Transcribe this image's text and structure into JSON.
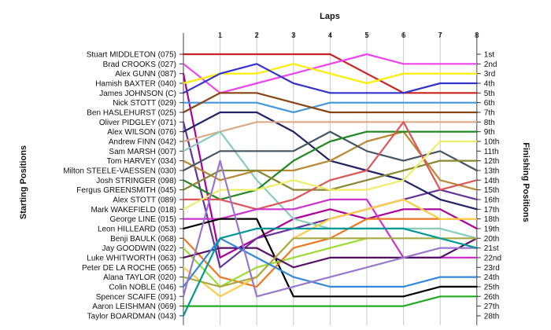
{
  "chart_data": {
    "type": "line",
    "title": "Laps",
    "left_axis_title": "Starting Positions",
    "right_axis_title": "Finishing Positions",
    "laps": [
      "1",
      "2",
      "3",
      "4",
      "5",
      "6",
      "7",
      "8"
    ],
    "finishing_labels": [
      "1st",
      "2nd",
      "3rd",
      "4th",
      "5th",
      "6th",
      "7th",
      "8th",
      "9th",
      "10th",
      "11th",
      "12th",
      "13th",
      "14th",
      "15th",
      "16th",
      "17th",
      "18th",
      "19th",
      "20th",
      "21st",
      "22nd",
      "23rd",
      "24th",
      "25th",
      "26th",
      "27th",
      "28th"
    ],
    "series": [
      {
        "name": "Stuart MIDDLETON (075)",
        "color": "#cc2222",
        "positions": [
          1,
          1,
          1,
          1,
          1,
          3,
          5,
          5,
          5
        ]
      },
      {
        "name": "Brad CROOKS (027)",
        "color": "#ee44ee",
        "positions": [
          2,
          5,
          4,
          3,
          2,
          1,
          2,
          2,
          2
        ]
      },
      {
        "name": "Alex GUNN (087)",
        "color": "#aa0099",
        "positions": [
          3,
          22,
          20,
          18,
          17,
          18,
          17,
          17,
          19
        ]
      },
      {
        "name": "Hamish BAXTER (040)",
        "color": "#ffee00",
        "positions": [
          4,
          3,
          3,
          2,
          3,
          4,
          3,
          3,
          3
        ]
      },
      {
        "name": "James JOHNSON (C)",
        "color": "#3333cc",
        "positions": [
          5,
          3,
          2,
          4,
          5,
          5,
          5,
          4,
          4
        ]
      },
      {
        "name": "Nick STOTT (029)",
        "color": "#4499dd",
        "positions": [
          6,
          6,
          6,
          7,
          6,
          6,
          6,
          6,
          6
        ]
      },
      {
        "name": "Ben HASLEHURST (025)",
        "color": "#884411",
        "positions": [
          7,
          5,
          5,
          6,
          7,
          7,
          7,
          7,
          7
        ]
      },
      {
        "name": "Oliver PIDGLEY (071)",
        "color": "#663399",
        "positions": [
          8,
          23,
          20,
          19,
          18,
          17,
          16,
          15,
          16
        ]
      },
      {
        "name": "Alex WILSON (076)",
        "color": "#222266",
        "positions": [
          9,
          7,
          7,
          9,
          12,
          13,
          14,
          16,
          17
        ]
      },
      {
        "name": "Andrew FINN (042)",
        "color": "#ddaa88",
        "positions": [
          10,
          9,
          8,
          8,
          8,
          8,
          8,
          8,
          8
        ]
      },
      {
        "name": "Sam MARSH (007)",
        "color": "#88ccbb",
        "positions": [
          11,
          9,
          14,
          18,
          19,
          19,
          19,
          19,
          20
        ]
      },
      {
        "name": "Tom HARVEY (034)",
        "color": "#bb8833",
        "positions": [
          12,
          14,
          13,
          13,
          12,
          10,
          9,
          14,
          15
        ]
      },
      {
        "name": "Milton STEELE-VAESSEN (030)",
        "color": "#445566",
        "positions": [
          13,
          11,
          11,
          11,
          9,
          11,
          12,
          11,
          13
        ]
      },
      {
        "name": "Josh STRINGER (098)",
        "color": "#228822",
        "positions": [
          14,
          16,
          15,
          12,
          10,
          9,
          9,
          9,
          9
        ]
      },
      {
        "name": "Fergus GREENSMITH (045)",
        "color": "#888833",
        "positions": [
          15,
          13,
          13,
          15,
          15,
          14,
          13,
          12,
          12
        ]
      },
      {
        "name": "Alex STOTT (089)",
        "color": "#dd5555",
        "positions": [
          16,
          16,
          17,
          16,
          14,
          13,
          8,
          15,
          14
        ]
      },
      {
        "name": "Mark WAKEFIELD (018)",
        "color": "#eeee66",
        "positions": [
          17,
          15,
          15,
          14,
          15,
          15,
          14,
          10,
          10
        ]
      },
      {
        "name": "George LINE (015)",
        "color": "#cc33cc",
        "positions": [
          18,
          18,
          17,
          17,
          16,
          16,
          22,
          22,
          22
        ]
      },
      {
        "name": "Leon HILLEARD (053)",
        "color": "#000000",
        "positions": [
          19,
          18,
          18,
          26,
          26,
          26,
          26,
          25,
          25
        ]
      },
      {
        "name": "Benji BAULK (068)",
        "color": "#ee7722",
        "positions": [
          20,
          24,
          25,
          21,
          20,
          18,
          18,
          18,
          18
        ]
      },
      {
        "name": "Jay GOODWIN (022)",
        "color": "#99dd33",
        "positions": [
          21,
          25,
          23,
          22,
          21,
          20,
          null,
          null,
          null
        ]
      },
      {
        "name": "Luke WHITWORTH (063)",
        "color": "#551166",
        "positions": [
          22,
          21,
          21,
          23,
          22,
          22,
          22,
          22,
          20
        ]
      },
      {
        "name": "Peter DE LA ROCHE (065)",
        "color": "#ffcc44",
        "positions": [
          23,
          26,
          24,
          20,
          18,
          17,
          16,
          18,
          18
        ]
      },
      {
        "name": "Alana TAYLOR (020)",
        "color": "#aaaa44",
        "positions": [
          24,
          25,
          24,
          20,
          20,
          20,
          20,
          20,
          20
        ]
      },
      {
        "name": "Colin NOBLE (046)",
        "color": "#3388dd",
        "positions": [
          25,
          20,
          22,
          24,
          25,
          25,
          25,
          24,
          24
        ]
      },
      {
        "name": "Spencer SCAIFE (091)",
        "color": "#9977cc",
        "positions": [
          26,
          12,
          26,
          25,
          24,
          23,
          22,
          21,
          21
        ]
      },
      {
        "name": "Aaron LEISHMAN (069)",
        "color": "#22aa22",
        "positions": [
          27,
          27,
          27,
          27,
          27,
          27,
          27,
          26,
          26
        ]
      },
      {
        "name": "Taylor BOARDMAN (043)",
        "color": "#009999",
        "positions": [
          28,
          20,
          19,
          19,
          19,
          19,
          19,
          20,
          21
        ]
      }
    ]
  }
}
